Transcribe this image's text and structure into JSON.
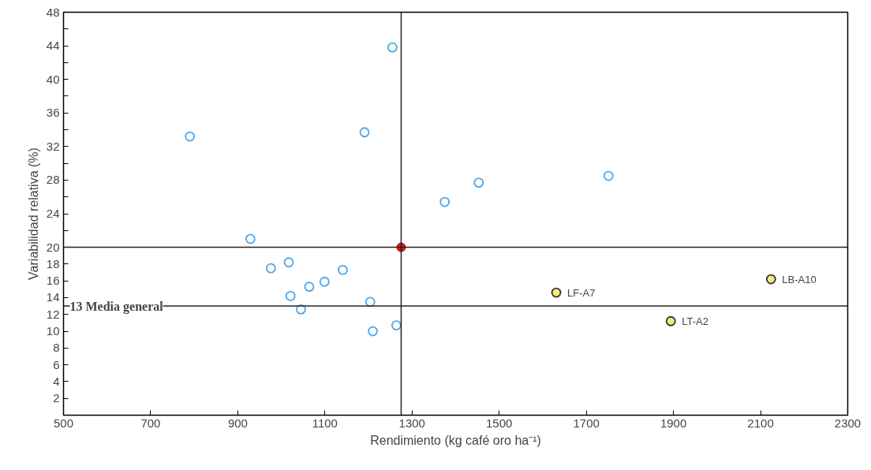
{
  "chart_data": {
    "type": "scatter",
    "xlabel": "Rendimiento (kg café oro ha⁻¹)",
    "ylabel": "Variabilidad relativa (%)",
    "xlim": [
      500,
      2300
    ],
    "xticks": [
      500,
      700,
      900,
      1100,
      1300,
      1500,
      1700,
      1900,
      2100,
      2300
    ],
    "ylim": [
      0,
      48
    ],
    "yticks": [
      2,
      4,
      6,
      8,
      10,
      12,
      14,
      16,
      18,
      20,
      {
        "value": 22,
        "label": null
      },
      24,
      {
        "value": 26,
        "label": null
      },
      28,
      {
        "value": 30,
        "label": null
      },
      32,
      {
        "value": 34,
        "label": null
      },
      36,
      {
        "value": 38,
        "label": null
      },
      40,
      {
        "value": 42,
        "label": null
      },
      44,
      {
        "value": 46,
        "label": null
      },
      48
    ],
    "grid": false,
    "marker": "circle",
    "series": [
      {
        "color": "#4da6e8",
        "x": [
          1255,
          790,
          1191,
          1375,
          1453,
          1751,
          929,
          976,
          1017,
          1141,
          1099,
          1064,
          1021,
          1045,
          1204,
          1210,
          1264
        ],
        "values": [
          43.8,
          33.2,
          33.7,
          25.4,
          27.7,
          28.5,
          21.0,
          17.5,
          18.2,
          17.3,
          15.9,
          15.3,
          14.2,
          12.6,
          13.5,
          10.0,
          10.7
        ]
      },
      {
        "color": "#f2ec7c",
        "x": [
          1631,
          1894,
          2124
        ],
        "values": [
          14.6,
          11.2,
          16.2
        ]
      },
      {
        "color": "#e8141c",
        "x": [
          1275
        ],
        "values": [
          20
        ]
      }
    ],
    "ref_lines": [
      {
        "axis": "x",
        "value": 1275,
        "color": "#222222"
      },
      {
        "axis": "y",
        "value": 20,
        "color": "#222222"
      },
      {
        "axis": "y",
        "value": 13,
        "label": "13 Media general",
        "color": "#222222"
      }
    ],
    "annotations": [
      {
        "text": "LF-A7",
        "x": 1631,
        "y": 14.6
      },
      {
        "text": "LT-A2",
        "x": 1894,
        "y": 11.2
      },
      {
        "text": "LB-A10",
        "x": 2124,
        "y": 16.2
      }
    ]
  }
}
